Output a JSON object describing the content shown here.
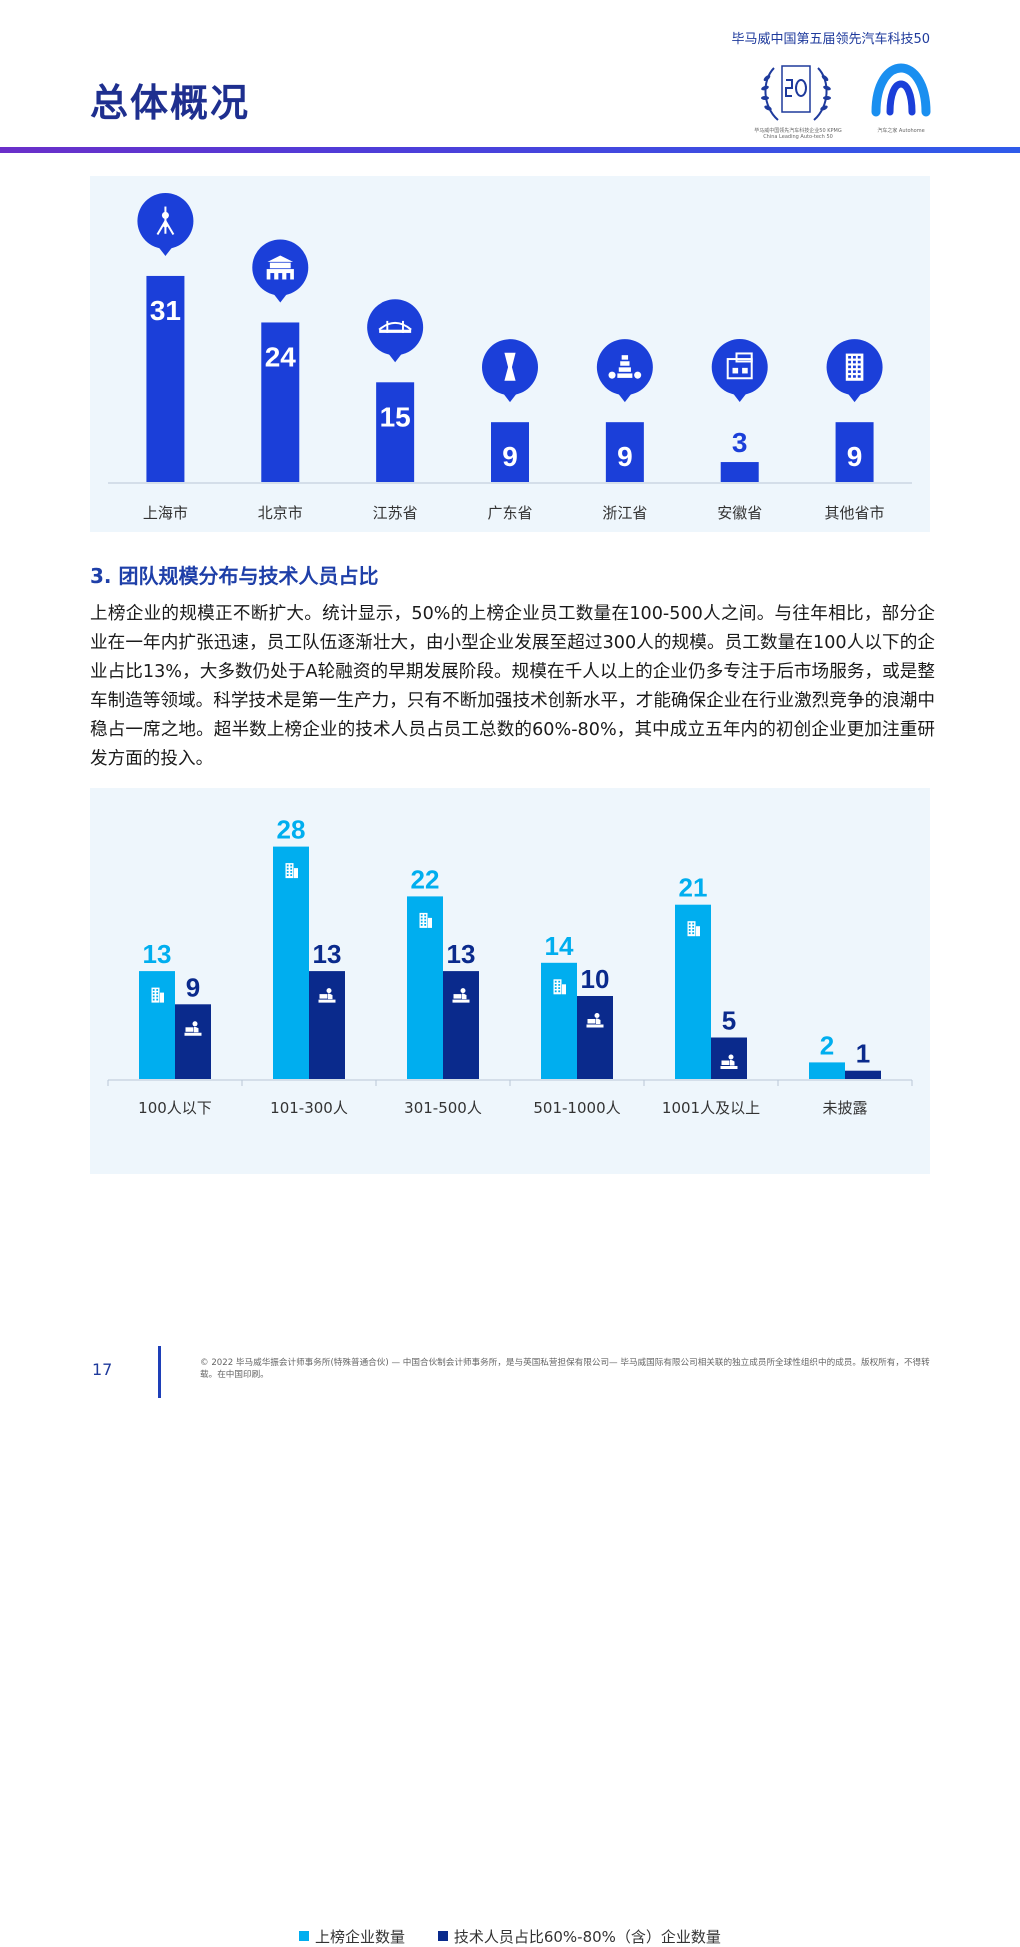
{
  "header": {
    "subtitle": "毕马威中国第五届领先汽车科技50",
    "title": "总体概况",
    "logo_laurel_caption": "毕马威中国领先汽车科技企业50 KPMG China Leading Auto-tech 50",
    "logo_arch_caption": "汽车之家 Autohome"
  },
  "colors": {
    "primary_blue": "#1b3fd9",
    "light_blue": "#00aeef",
    "dark_navy": "#0a2a8c",
    "panel_bg": "#eef6fc",
    "heading_blue": "#1e3fa8"
  },
  "chart_data": [
    {
      "type": "bar",
      "categories": [
        "上海市",
        "北京市",
        "江苏省",
        "广东省",
        "浙江省",
        "安徽省",
        "其他省市"
      ],
      "values": [
        31,
        24,
        15,
        9,
        9,
        3,
        9
      ],
      "icons": [
        "oriental-pearl-tower-icon",
        "gate-tower-icon",
        "bridge-icon",
        "canton-tower-icon",
        "pagoda-icon",
        "huizhou-house-icon",
        "skyscraper-icon"
      ],
      "ylim": [
        0,
        34
      ]
    },
    {
      "type": "bar",
      "categories": [
        "100人以下",
        "101-300人",
        "301-500人",
        "501-1000人",
        "1001人及以上",
        "未披露"
      ],
      "series": [
        {
          "name": "上榜企业数量",
          "values": [
            13,
            28,
            22,
            14,
            21,
            2
          ],
          "color": "#00aeef",
          "icon": "office-building-icon"
        },
        {
          "name": "技术人员占比60%-80%（含）企业数量",
          "values": [
            9,
            13,
            13,
            10,
            5,
            1
          ],
          "color": "#0a2a8c",
          "icon": "person-at-desk-icon"
        }
      ],
      "ylim": [
        0,
        30
      ],
      "legend": "bottom"
    }
  ],
  "section": {
    "heading": "3. 团队规模分布与技术人员占比",
    "paragraph": "上榜企业的规模正不断扩大。统计显示，50%的上榜企业员工数量在100-500人之间。与往年相比，部分企业在一年内扩张迅速，员工队伍逐渐壮大，由小型企业发展至超过300人的规模。员工数量在100人以下的企业占比13%，大多数仍处于A轮融资的早期发展阶段。规模在千人以上的企业仍多专注于后市场服务，或是整车制造等领域。科学技术是第一生产力，只有不断加强技术创新水平，才能确保企业在行业激烈竞争的浪潮中稳占一席之地。超半数上榜企业的技术人员占员工总数的60%-80%，其中成立五年内的初创企业更加注重研发方面的投入。"
  },
  "footer": {
    "page_number": "17",
    "copyright": "© 2022 毕马威华振会计师事务所(特殊普通合伙) — 中国合伙制会计师事务所，是与英国私营担保有限公司— 毕马威国际有限公司相关联的独立成员所全球性组织中的成员。版权所有，不得转载。在中国印刷。"
  }
}
